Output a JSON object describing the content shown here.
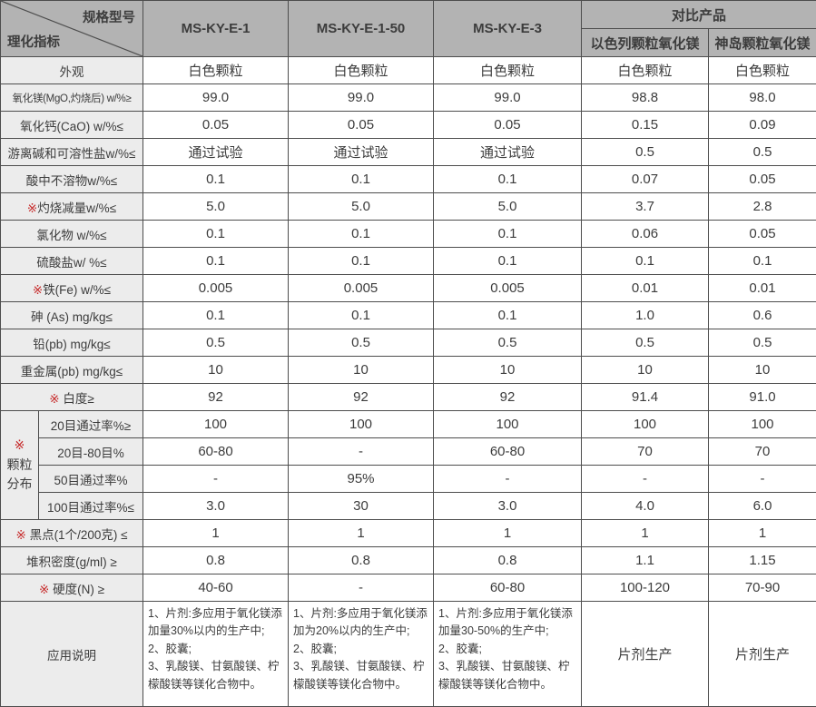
{
  "spec_table": {
    "corner": {
      "top": "规格型号",
      "bottom": "理化指标"
    },
    "model_columns": [
      "MS-KY-E-1",
      "MS-KY-E-1-50",
      "MS-KY-E-3"
    ],
    "comparison": {
      "header": "对比产品",
      "columns": [
        "以色列颗粒氧化镁",
        "神岛颗粒氧化镁"
      ]
    },
    "colors": {
      "header_bg": "#b3b3b3",
      "label_bg": "#ececec",
      "border": "#4d4d4d",
      "text": "#3c3c3c",
      "mark_red": "#c62828"
    },
    "rows": [
      {
        "label": "外观",
        "cells": [
          "白色颗粒",
          "白色颗粒",
          "白色颗粒",
          "白色颗粒",
          "白色颗粒"
        ]
      },
      {
        "label": "氧化镁(MgO,灼烧后) w/%≥",
        "cells": [
          "99.0",
          "99.0",
          "99.0",
          "98.8",
          "98.0"
        ]
      },
      {
        "label": "氧化钙(CaO) w/%≤",
        "cells": [
          "0.05",
          "0.05",
          "0.05",
          "0.15",
          "0.09"
        ]
      },
      {
        "label": "游离碱和可溶性盐w/%≤",
        "cells": [
          "通过试验",
          "通过试验",
          "通过试验",
          "0.5",
          "0.5"
        ]
      },
      {
        "label": "酸中不溶物w/%≤",
        "cells": [
          "0.1",
          "0.1",
          "0.1",
          "0.07",
          "0.05"
        ]
      },
      {
        "mark": "※",
        "label": "灼烧减量w/%≤",
        "cells": [
          "5.0",
          "5.0",
          "5.0",
          "3.7",
          "2.8"
        ]
      },
      {
        "label": "氯化物 w/%≤",
        "cells": [
          "0.1",
          "0.1",
          "0.1",
          "0.06",
          "0.05"
        ]
      },
      {
        "label": "硫酸盐w/ %≤",
        "cells": [
          "0.1",
          "0.1",
          "0.1",
          "0.1",
          "0.1"
        ]
      },
      {
        "mark": "※",
        "label": "铁(Fe) w/%≤",
        "cells": [
          "0.005",
          "0.005",
          "0.005",
          "0.01",
          "0.01"
        ]
      },
      {
        "label": "砷 (As) mg/kg≤",
        "cells": [
          "0.1",
          "0.1",
          "0.1",
          "1.0",
          "0.6"
        ]
      },
      {
        "label": "铅(pb) mg/kg≤",
        "cells": [
          "0.5",
          "0.5",
          "0.5",
          "0.5",
          "0.5"
        ]
      },
      {
        "label": "重金属(pb) mg/kg≤",
        "cells": [
          "10",
          "10",
          "10",
          "10",
          "10"
        ]
      },
      {
        "mark": "※",
        "label": " 白度≥",
        "cells": [
          "92",
          "92",
          "92",
          "91.4",
          "91.0"
        ]
      },
      {
        "group": {
          "mark": "※",
          "lines": [
            "颗粒",
            "分布"
          ],
          "rowspan": 4
        },
        "sublabel": "20目通过率%≥",
        "cells": [
          "100",
          "100",
          "100",
          "100",
          "100"
        ]
      },
      {
        "sublabel": "20目-80目%",
        "cells": [
          "60-80",
          "-",
          "60-80",
          "70",
          "70"
        ]
      },
      {
        "sublabel": "50目通过率%",
        "cells": [
          "-",
          "95%",
          "-",
          "-",
          "-"
        ]
      },
      {
        "sublabel": "100目通过率%≤",
        "cells": [
          "3.0",
          "30",
          "3.0",
          "4.0",
          "6.0"
        ]
      },
      {
        "mark": "※",
        "label": " 黑点(1个/200克) ≤",
        "cells": [
          "1",
          "1",
          "1",
          "1",
          "1"
        ]
      },
      {
        "label": "堆积密度(g/ml) ≥",
        "cells": [
          "0.8",
          "0.8",
          "0.8",
          "1.1",
          "1.15"
        ]
      },
      {
        "mark": "※",
        "label": " 硬度(N) ≥",
        "cells": [
          "40-60",
          "-",
          "60-80",
          "100-120",
          "70-90"
        ]
      },
      {
        "label": "应用说明",
        "app": true,
        "cells": [
          "1、片剂:多应用于氧化镁添加量30%以内的生产中;\n2、胶囊;\n3、乳酸镁、甘氨酸镁、柠檬酸镁等镁化合物中。",
          "1、片剂:多应用于氧化镁添加为20%以内的生产中;\n2、胶囊;\n3、乳酸镁、甘氨酸镁、柠檬酸镁等镁化合物中。",
          "1、片剂:多应用于氧化镁添加量30-50%的生产中;\n2、胶囊;\n3、乳酸镁、甘氨酸镁、柠檬酸镁等镁化合物中。",
          "片剂生产",
          "片剂生产"
        ]
      }
    ]
  }
}
